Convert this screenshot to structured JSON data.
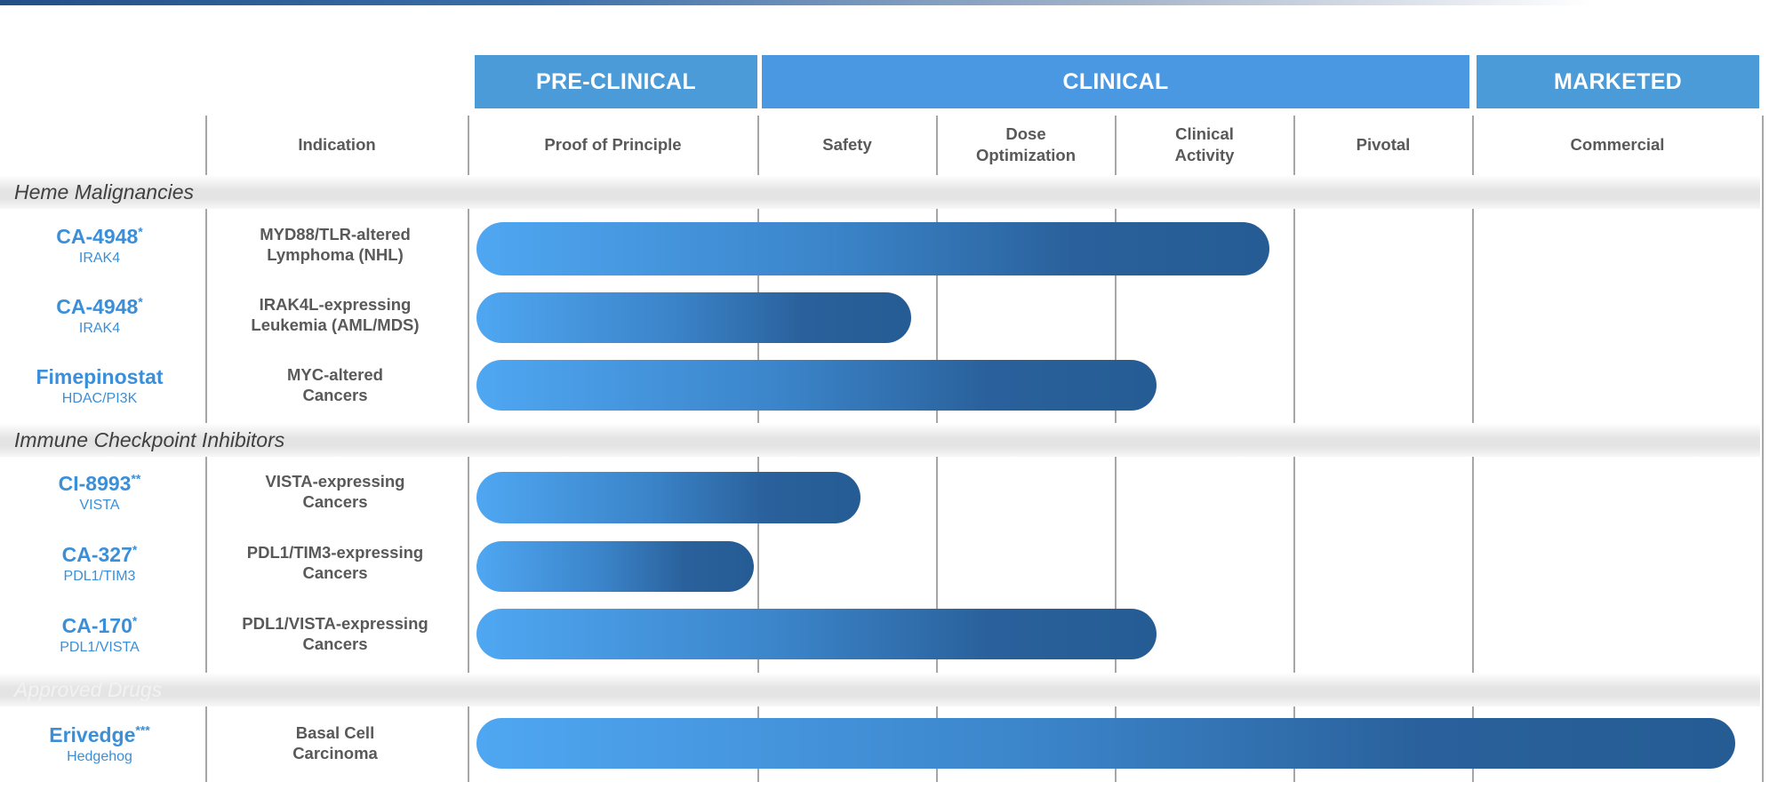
{
  "phases": [
    {
      "label": "PRE-CLINICAL",
      "color": "#4a9bd8"
    },
    {
      "label": "CLINICAL",
      "color": "#4a97e2"
    },
    {
      "label": "MARKETED",
      "color": "#4a9bd8"
    }
  ],
  "columns": {
    "indication": "Indication",
    "proof": "Proof of Principle",
    "safety": "Safety",
    "dose": "Dose\nOptimization",
    "activity": "Clinical\nActivity",
    "pivotal": "Pivotal",
    "commercial": "Commercial"
  },
  "groups": [
    {
      "label": "Heme Malignancies"
    },
    {
      "label": "Immune Checkpoint Inhibitors"
    },
    {
      "label": "Approved Drugs"
    }
  ],
  "programs": [
    {
      "name": "CA-4948",
      "mark": "*",
      "target": "IRAK4",
      "indication": "MYD88/TLR-altered\nLymphoma (NHL)",
      "progress": 0.63
    },
    {
      "name": "CA-4948",
      "mark": "*",
      "target": "IRAK4",
      "indication": "IRAK4L-expressing\nLeukemia (AML/MDS)",
      "progress": 0.345
    },
    {
      "name": "Fimepinostat",
      "mark": "",
      "target": "HDAC/PI3K",
      "indication": "MYC-altered\nCancers",
      "progress": 0.54
    },
    {
      "name": "CI-8993",
      "mark": "**",
      "target": "VISTA",
      "indication": "VISTA-expressing\nCancers",
      "progress": 0.305
    },
    {
      "name": "CA-327",
      "mark": "*",
      "target": "PDL1/TIM3",
      "indication": "PDL1/TIM3-expressing\nCancers",
      "progress": 0.22
    },
    {
      "name": "CA-170",
      "mark": "*",
      "target": "PDL1/VISTA",
      "indication": "PDL1/VISTA-expressing\nCancers",
      "progress": 0.54
    },
    {
      "name": "Erivedge",
      "mark": "***",
      "target": "Hedgehog",
      "indication": "Basal Cell\nCarcinoma",
      "progress": 1.0
    }
  ]
}
